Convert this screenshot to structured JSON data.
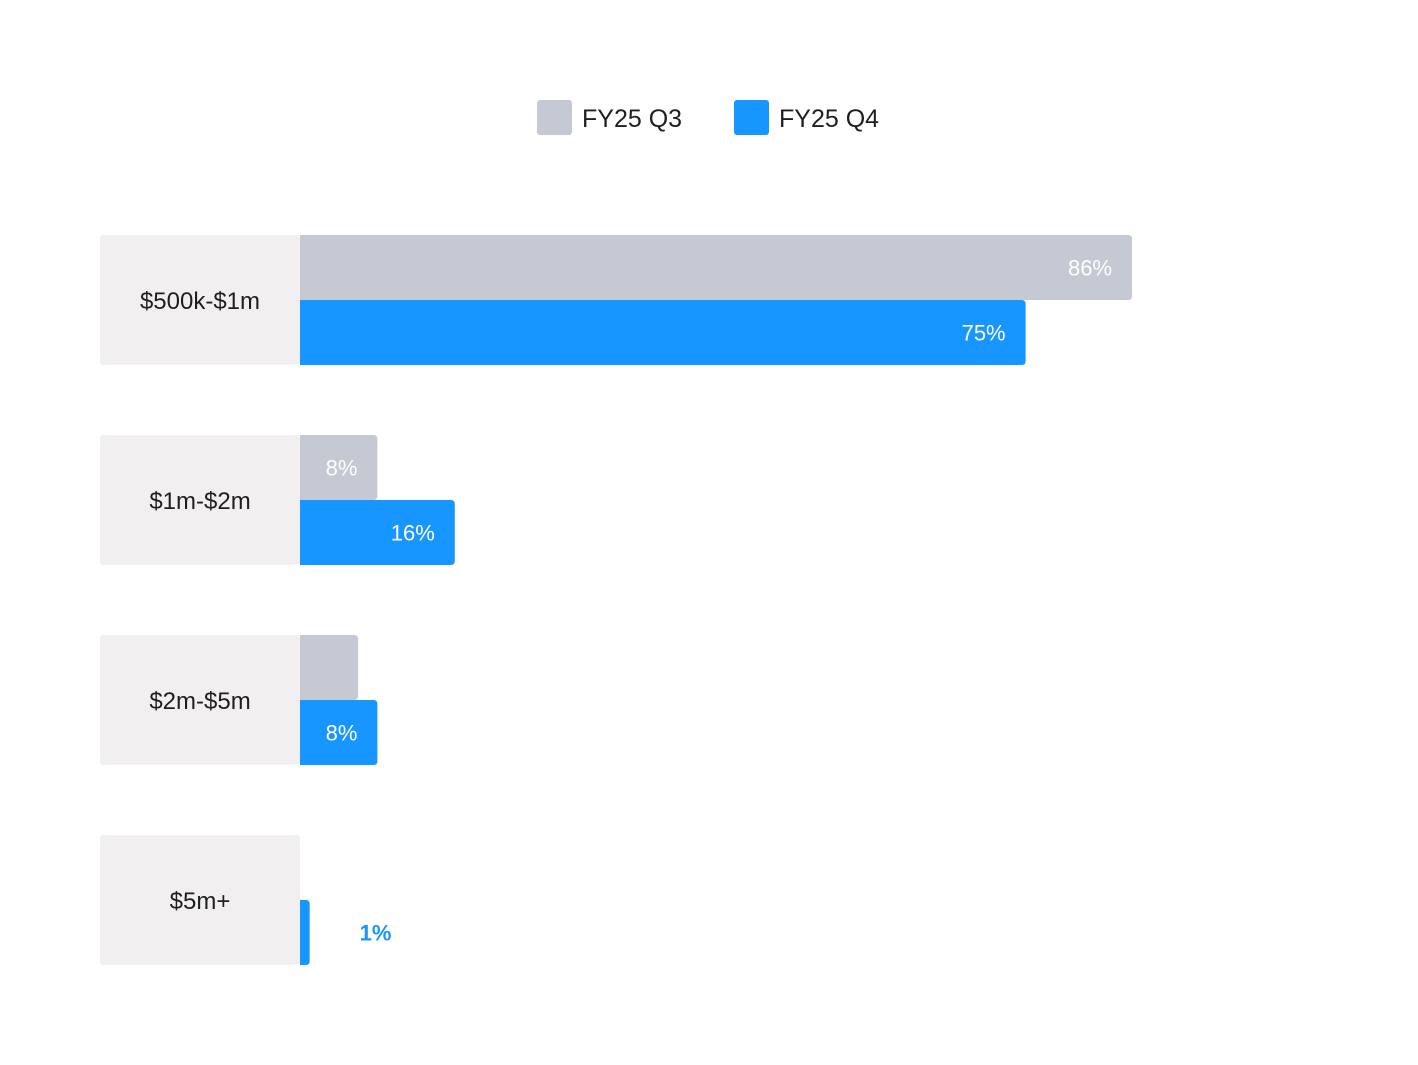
{
  "colors": {
    "q3": "#c5c9d3",
    "q4": "#1896ff",
    "category_bg": "#f1eff0",
    "label_inside": "#ffffff",
    "label_outside": "#1896ff",
    "text": "#1f1f1f"
  },
  "chart_data": {
    "type": "bar",
    "orientation": "horizontal",
    "categories": [
      "$500k-$1m",
      "$1m-$2m",
      "$2m-$5m",
      "$5m+"
    ],
    "series": [
      {
        "name": "FY25 Q3",
        "values": [
          86,
          8,
          6,
          0
        ],
        "labels": [
          "86%",
          "8%",
          "",
          ""
        ]
      },
      {
        "name": "FY25 Q4",
        "values": [
          75,
          16,
          8,
          1
        ],
        "labels": [
          "75%",
          "16%",
          "8%",
          "1%"
        ]
      }
    ],
    "unit": "%",
    "xlim": [
      0,
      100
    ],
    "grid": false,
    "legend": "top-center"
  }
}
